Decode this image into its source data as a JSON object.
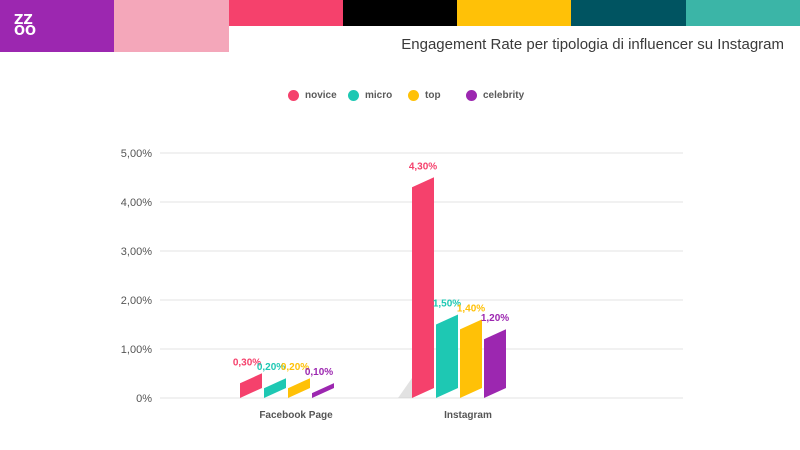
{
  "brand": {
    "logo_text": "ZZ\nOO",
    "colors": {
      "purple": "#9c27b0",
      "light_pink": "#f4a7ba",
      "pink": "#f5416c",
      "black": "#000000",
      "yellow": "#ffc107",
      "dark_teal": "#005461",
      "teal": "#3bb5a7"
    }
  },
  "header": {
    "title": "Engagement Rate per tipologia di influencer su Instagram"
  },
  "chart_data": {
    "type": "bar",
    "title": "Engagement Rate per tipologia di influencer su Instagram",
    "categories": [
      "Facebook Page",
      "Instagram"
    ],
    "series": [
      {
        "name": "novice",
        "color": "#f5416c",
        "values": [
          0.3,
          4.3
        ],
        "labels": [
          "0,30%",
          "4,30%"
        ]
      },
      {
        "name": "micro",
        "color": "#1ec8b3",
        "values": [
          0.2,
          1.5
        ],
        "labels": [
          "0,20%",
          "1,50%"
        ]
      },
      {
        "name": "top",
        "color": "#ffc107",
        "values": [
          0.2,
          1.4
        ],
        "labels": [
          "0,20%",
          "1,40%"
        ]
      },
      {
        "name": "celebrity",
        "color": "#9c27b0",
        "values": [
          0.1,
          1.2
        ],
        "labels": [
          "0,10%",
          "1,20%"
        ]
      }
    ],
    "yticks": [
      {
        "value": 0,
        "label": "0%"
      },
      {
        "value": 1,
        "label": "1,00%"
      },
      {
        "value": 2,
        "label": "2,00%"
      },
      {
        "value": 3,
        "label": "3,00%"
      },
      {
        "value": 4,
        "label": "4,00%"
      },
      {
        "value": 5,
        "label": "5,00%"
      }
    ],
    "ylim": [
      0,
      5
    ],
    "grid": true,
    "legend_position": "top-center"
  }
}
